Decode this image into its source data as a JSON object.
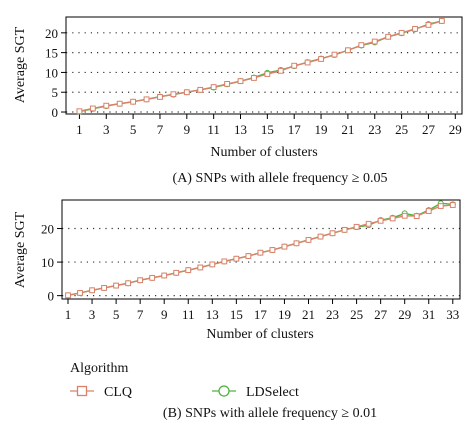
{
  "colors": {
    "clq": "#d9826a",
    "ldselect": "#4fb33f",
    "grid": "#333333",
    "axis": "#000000"
  },
  "legend": {
    "title": "Algorithm",
    "items": [
      {
        "label": "CLQ",
        "marker": "square",
        "color": "#d9826a"
      },
      {
        "label": "LDSelect",
        "marker": "circle",
        "color": "#4fb33f"
      }
    ]
  },
  "chart_data": [
    {
      "type": "line",
      "caption": "(A) SNPs with allele frequency ≥ 0.05",
      "xlabel": "Number of clusters",
      "ylabel": "Average SGT",
      "xlim": [
        0,
        29.5
      ],
      "ylim": [
        -0.5,
        24
      ],
      "xticks": [
        1,
        3,
        5,
        7,
        9,
        11,
        13,
        15,
        17,
        19,
        21,
        23,
        25,
        27,
        29
      ],
      "yticks": [
        0,
        5,
        10,
        15,
        20
      ],
      "grid": "dotted horizontal",
      "x": [
        1,
        2,
        3,
        4,
        5,
        6,
        7,
        8,
        9,
        10,
        11,
        12,
        13,
        14,
        15,
        16,
        17,
        18,
        19,
        20,
        21,
        22,
        23,
        24,
        25,
        26,
        27,
        28
      ],
      "series": [
        {
          "name": "CLQ",
          "marker": "square",
          "values": [
            0.2,
            0.9,
            1.6,
            2.1,
            2.6,
            3.2,
            3.8,
            4.5,
            5.0,
            5.6,
            6.3,
            7.1,
            7.8,
            8.6,
            9.6,
            10.4,
            11.7,
            12.5,
            13.4,
            14.5,
            15.6,
            16.9,
            17.8,
            19.0,
            20.0,
            21.0,
            22.0,
            23.0
          ]
        },
        {
          "name": "LDSelect",
          "marker": "circle",
          "values": [
            0.1,
            0.8,
            1.5,
            2.1,
            2.6,
            3.2,
            3.9,
            4.4,
            5.0,
            5.6,
            6.2,
            7.0,
            7.8,
            8.7,
            9.9,
            10.6,
            11.6,
            12.6,
            13.5,
            14.4,
            15.6,
            16.8,
            17.6,
            19.0,
            19.9,
            20.9,
            22.2,
            23.0
          ]
        }
      ]
    },
    {
      "type": "line",
      "caption": "(B) SNPs with allele frequency ≥ 0.01",
      "xlabel": "Number of clusters",
      "ylabel": "Average SGT",
      "xlim": [
        0.5,
        33.6
      ],
      "ylim": [
        -1,
        28.5
      ],
      "xticks": [
        1,
        3,
        5,
        7,
        9,
        11,
        13,
        15,
        17,
        19,
        21,
        23,
        25,
        27,
        29,
        31,
        33
      ],
      "yticks": [
        0,
        10,
        20
      ],
      "grid": "dotted horizontal",
      "x": [
        1,
        2,
        3,
        4,
        5,
        6,
        7,
        8,
        9,
        10,
        11,
        12,
        13,
        14,
        15,
        16,
        17,
        18,
        19,
        20,
        21,
        22,
        23,
        24,
        25,
        26,
        27,
        28,
        29,
        30,
        31,
        32,
        33
      ],
      "series": [
        {
          "name": "CLQ",
          "marker": "square",
          "values": [
            0.1,
            0.8,
            1.6,
            2.3,
            3.0,
            3.7,
            4.6,
            5.3,
            6.0,
            6.8,
            7.6,
            8.4,
            9.3,
            10.2,
            11.0,
            11.8,
            12.8,
            13.6,
            14.6,
            15.6,
            16.6,
            17.6,
            18.6,
            19.6,
            20.5,
            21.4,
            22.3,
            23.0,
            23.8,
            23.7,
            25.2,
            26.7,
            27.0
          ]
        },
        {
          "name": "LDSelect",
          "marker": "circle",
          "values": [
            0.1,
            0.8,
            1.6,
            2.3,
            3.0,
            3.7,
            4.6,
            5.3,
            6.0,
            6.8,
            7.6,
            8.4,
            9.3,
            10.2,
            11.0,
            11.8,
            12.8,
            13.6,
            14.6,
            15.6,
            16.6,
            17.6,
            18.6,
            19.6,
            20.4,
            21.0,
            22.5,
            23.2,
            24.5,
            23.8,
            25.5,
            27.5,
            27.2
          ]
        }
      ]
    }
  ]
}
